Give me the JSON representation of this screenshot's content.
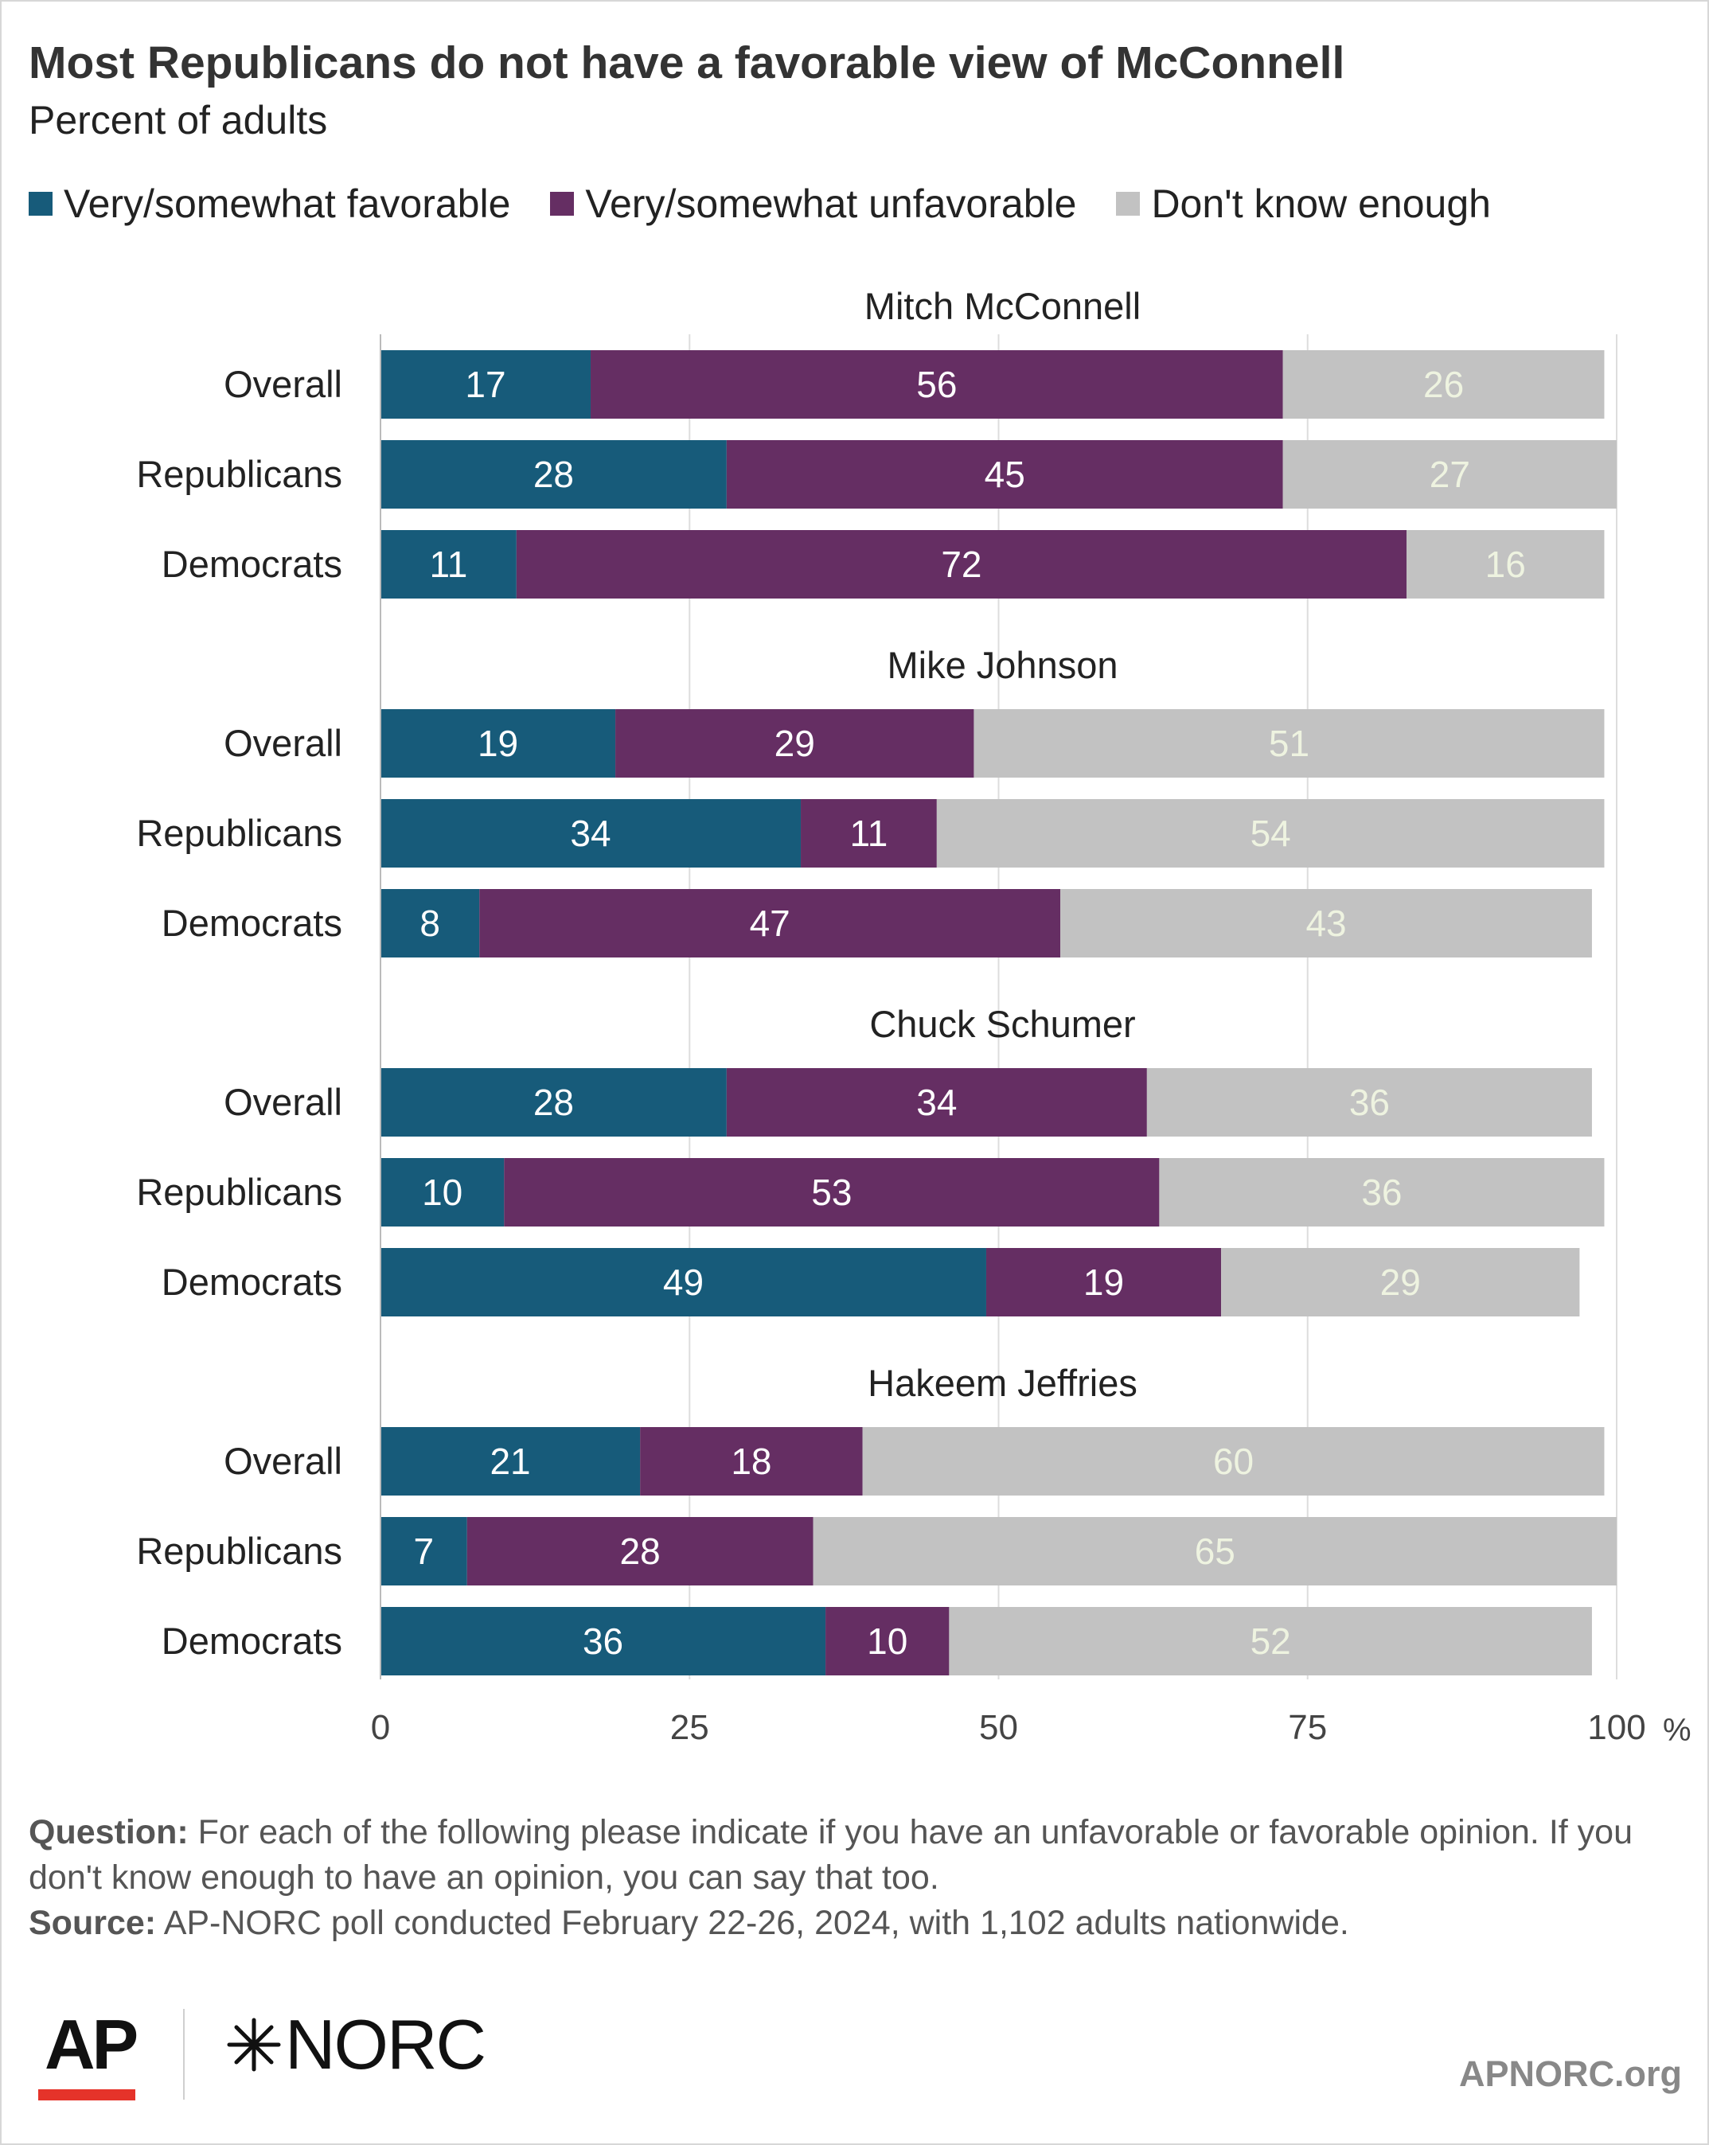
{
  "title": "Most Republicans do not have a favorable view of McConnell",
  "subtitle": "Percent of adults",
  "legend": {
    "favorable": "Very/somewhat favorable",
    "unfavorable": "Very/somewhat unfavorable",
    "dontknow": "Don't know enough"
  },
  "colors": {
    "favorable": "#175b7a",
    "unfavorable": "#652e63",
    "dontknow": "#c2c2c2",
    "label_light": "#ffffff",
    "label_on_gray": "#eef3e0",
    "grid": "#dddddd"
  },
  "chart_data": {
    "type": "bar",
    "orientation": "horizontal",
    "stacked": true,
    "xlim": [
      0,
      100
    ],
    "x_ticks": [
      "0",
      "25",
      "50",
      "75",
      "100"
    ],
    "x_unit": "%",
    "grid": true,
    "legend_position": "top",
    "series_keys": [
      "favorable",
      "unfavorable",
      "dontknow"
    ],
    "groups": [
      {
        "title": "Mitch McConnell",
        "rows": [
          {
            "label": "Overall",
            "values": [
              17,
              56,
              26
            ]
          },
          {
            "label": "Republicans",
            "values": [
              28,
              45,
              27
            ]
          },
          {
            "label": "Democrats",
            "values": [
              11,
              72,
              16
            ]
          }
        ]
      },
      {
        "title": "Mike Johnson",
        "rows": [
          {
            "label": "Overall",
            "values": [
              19,
              29,
              51
            ]
          },
          {
            "label": "Republicans",
            "values": [
              34,
              11,
              54
            ]
          },
          {
            "label": "Democrats",
            "values": [
              8,
              47,
              43
            ]
          }
        ]
      },
      {
        "title": "Chuck Schumer",
        "rows": [
          {
            "label": "Overall",
            "values": [
              28,
              34,
              36
            ]
          },
          {
            "label": "Republicans",
            "values": [
              10,
              53,
              36
            ]
          },
          {
            "label": "Democrats",
            "values": [
              49,
              19,
              29
            ]
          }
        ]
      },
      {
        "title": "Hakeem Jeffries",
        "rows": [
          {
            "label": "Overall",
            "values": [
              21,
              18,
              60
            ]
          },
          {
            "label": "Republicans",
            "values": [
              7,
              28,
              65
            ]
          },
          {
            "label": "Democrats",
            "values": [
              36,
              10,
              52
            ]
          }
        ]
      }
    ]
  },
  "footer": {
    "question_label": "Question:",
    "question_text": "For each of the following please indicate if you have an unfavorable or favorable opinion. If you don't know enough to have an opinion, you can say that too.",
    "source_label": "Source:",
    "source_text": "AP-NORC poll conducted February 22-26, 2024, with 1,102 adults nationwide."
  },
  "logos": {
    "ap": "AP",
    "norc": "NORC",
    "norc_icon": "norc-star-icon"
  },
  "site": "APNORC.org"
}
